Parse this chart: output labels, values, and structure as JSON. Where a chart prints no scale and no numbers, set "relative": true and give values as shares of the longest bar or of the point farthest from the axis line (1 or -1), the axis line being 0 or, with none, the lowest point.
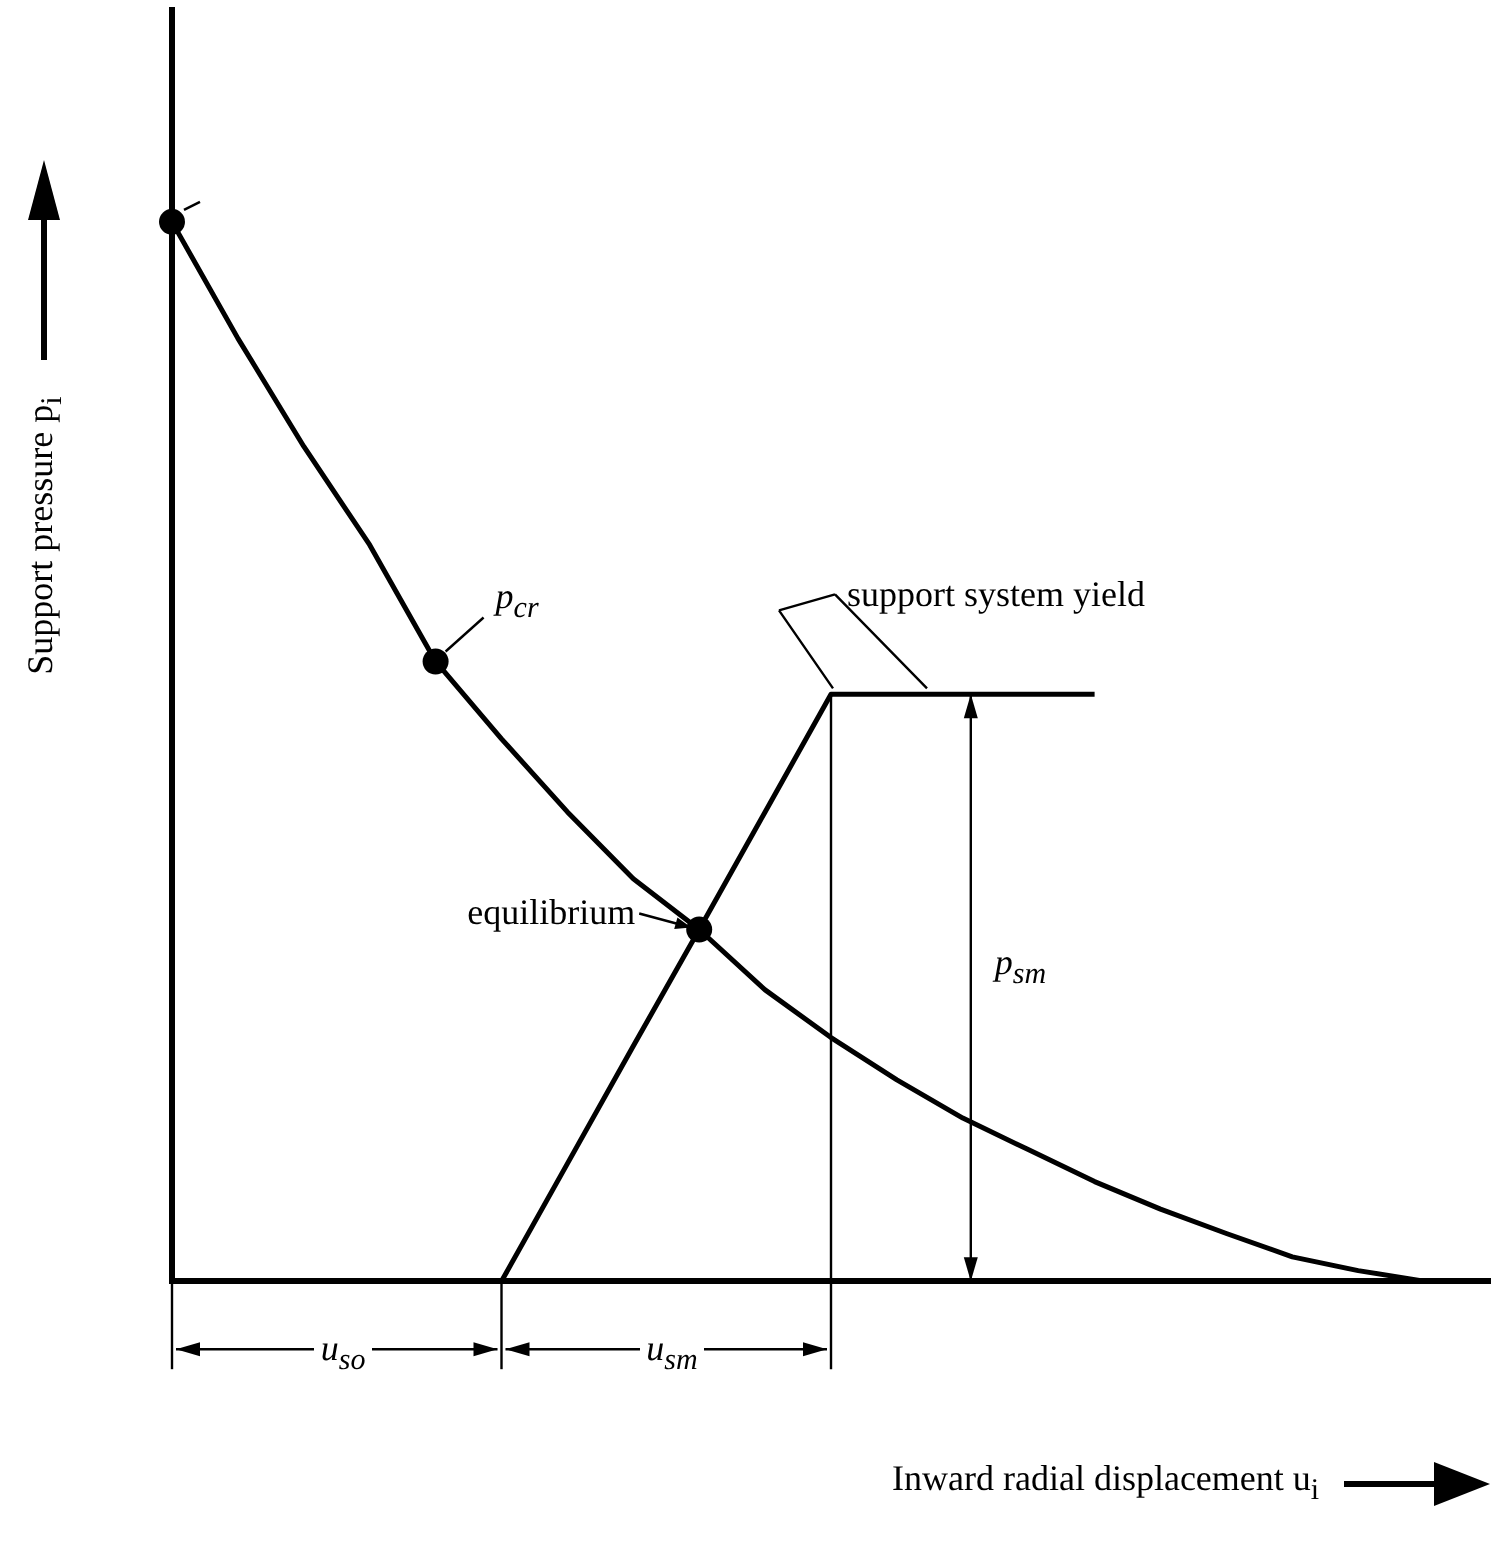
{
  "chart_data": {
    "type": "line",
    "relative": true,
    "xlabel": "Inward radial displacement u$_{i}$",
    "ylabel": "Support pressure p$_{i}$",
    "grid": false,
    "legend": false,
    "marker": "none",
    "line_style": "solid",
    "categories": [
      null,
      null,
      null,
      null,
      null,
      null,
      null,
      null,
      null,
      null,
      null,
      null,
      null,
      null,
      null,
      null,
      null,
      null,
      null,
      null,
      null
    ],
    "series": [
      {
        "color": "#000000",
        "values": [
          1,
          0.89,
          0.788,
          0.695,
          0.585,
          0.512,
          0.443,
          0.38,
          0.332,
          0.275,
          0.23,
          0.19,
          0.154,
          0.124,
          0.094,
          0.068,
          0.045,
          0.023,
          0.01,
          0,
          null
        ]
      },
      {
        "color": "#000000",
        "values": [
          null,
          null,
          null,
          null,
          null,
          0,
          0.111,
          0.222,
          0.332,
          0.443,
          0.554,
          0.554,
          0.554,
          0.554,
          0.554,
          null,
          null,
          null,
          null,
          null,
          null
        ]
      }
    ],
    "annotations": [
      "p$_{cr}$",
      "equilibrium",
      "support system yield",
      "p$_{sm}$",
      "u$_{so}$",
      "u$_{sm}$"
    ]
  }
}
